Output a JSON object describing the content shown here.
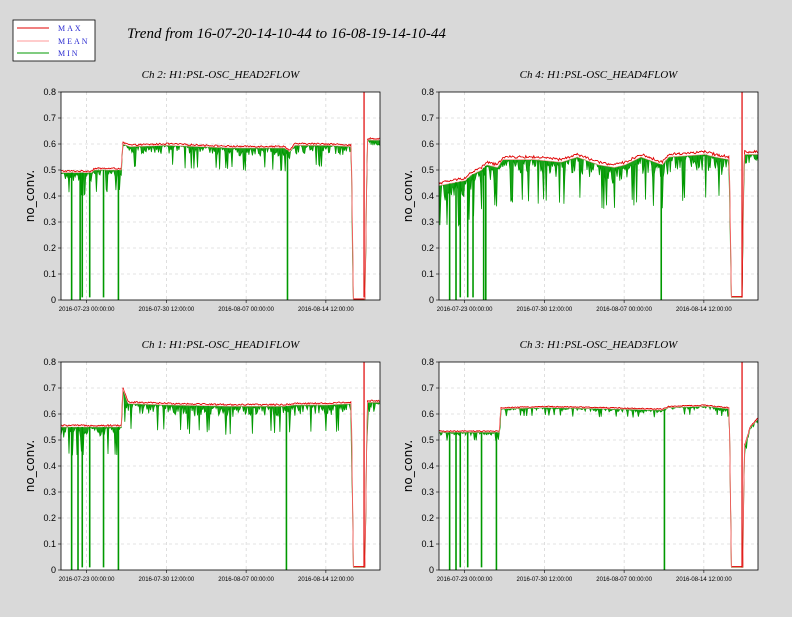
{
  "title": "Trend from 16-07-20-14-10-44 to 16-08-19-14-10-44",
  "legend": {
    "items": [
      {
        "label": "MAX",
        "color": "#e00000"
      },
      {
        "label": "MEAN",
        "color": "#ff9999"
      },
      {
        "label": "MIN",
        "color": "#009900"
      }
    ],
    "text_color": "#2a2ad0"
  },
  "colors": {
    "background": "#d9d9d9",
    "plot_background": "#ffffff",
    "grid": "#c8c8c8",
    "max": "#e00000",
    "mean": "#ff9999",
    "min": "#009900"
  },
  "chart_data": [
    {
      "type": "line",
      "title": "Ch 2: H1:PSL-OSC_HEAD2FLOW",
      "ylabel": "no_conv.",
      "ylim": [
        0,
        0.8
      ],
      "yticks": [
        "0",
        "0.1",
        "0.2",
        "0.3",
        "0.4",
        "0.5",
        "0.6",
        "0.7",
        "0.8"
      ],
      "xlim": [
        "2016-07-20 14:10:44",
        "2016-08-19 14:10:44"
      ],
      "xticks": [
        "2016-07-23 00:00:00",
        "2016-07-30 12:00:00",
        "2016-08-07 00:00:00",
        "2016-08-14 12:00:00"
      ],
      "grid": true,
      "series_names": [
        "MAX",
        "MEAN",
        "MIN"
      ],
      "profile": [
        [
          0,
          0.49
        ],
        [
          2.9,
          0.49
        ],
        [
          3.1,
          0.5
        ],
        [
          5.7,
          0.5
        ],
        [
          5.8,
          0.6
        ],
        [
          6.5,
          0.59
        ],
        [
          10,
          0.595
        ],
        [
          16,
          0.585
        ],
        [
          21,
          0.585
        ],
        [
          21.5,
          0.57
        ],
        [
          22,
          0.595
        ],
        [
          25,
          0.595
        ],
        [
          27.3,
          0.59
        ],
        [
          27.5,
          0.0
        ],
        [
          28.6,
          0.0
        ],
        [
          28.8,
          0.615
        ],
        [
          30,
          0.615
        ]
      ],
      "drops": [
        [
          1.0,
          0.0
        ],
        [
          1.8,
          0.0
        ],
        [
          2.0,
          0.01
        ],
        [
          2.7,
          0.01
        ],
        [
          4.0,
          0.01
        ],
        [
          5.4,
          0.0
        ],
        [
          21.3,
          0.0
        ]
      ],
      "spike_max": {
        "day": 28.5,
        "value": 0.8
      },
      "noise": {
        "min_spread": 0.04,
        "max_spread": 0.006
      }
    },
    {
      "type": "line",
      "title": "Ch 4: H1:PSL-OSC_HEAD4FLOW",
      "ylabel": "no_conv.",
      "ylim": [
        0,
        0.8
      ],
      "yticks": [
        "0",
        "0.1",
        "0.2",
        "0.3",
        "0.4",
        "0.5",
        "0.6",
        "0.7",
        "0.8"
      ],
      "xlim": [
        "2016-07-20 14:10:44",
        "2016-08-19 14:10:44"
      ],
      "xticks": [
        "2016-07-23 00:00:00",
        "2016-07-30 12:00:00",
        "2016-08-07 00:00:00",
        "2016-08-14 12:00:00"
      ],
      "grid": true,
      "series_names": [
        "MAX",
        "MEAN",
        "MIN"
      ],
      "profile": [
        [
          0,
          0.44
        ],
        [
          2.5,
          0.46
        ],
        [
          3.0,
          0.48
        ],
        [
          4.0,
          0.5
        ],
        [
          4.5,
          0.52
        ],
        [
          5.5,
          0.51
        ],
        [
          6.0,
          0.54
        ],
        [
          9.0,
          0.54
        ],
        [
          11.5,
          0.53
        ],
        [
          13.0,
          0.55
        ],
        [
          15.0,
          0.52
        ],
        [
          16.5,
          0.51
        ],
        [
          17.5,
          0.52
        ],
        [
          19.0,
          0.55
        ],
        [
          21.0,
          0.52
        ],
        [
          21.6,
          0.55
        ],
        [
          25.0,
          0.56
        ],
        [
          26.0,
          0.55
        ],
        [
          27.3,
          0.54
        ],
        [
          27.5,
          0.01
        ],
        [
          28.5,
          0.01
        ],
        [
          28.7,
          0.56
        ],
        [
          30,
          0.56
        ]
      ],
      "drops": [
        [
          1.0,
          0.0
        ],
        [
          1.6,
          0.0
        ],
        [
          2.0,
          0.01
        ],
        [
          2.7,
          0.01
        ],
        [
          3.2,
          0.01
        ],
        [
          4.2,
          0.0
        ],
        [
          4.4,
          0.0
        ],
        [
          20.9,
          0.0
        ]
      ],
      "spike_max": {
        "day": 28.5,
        "value": 0.8
      },
      "noise": {
        "min_spread": 0.08,
        "max_spread": 0.01
      }
    },
    {
      "type": "line",
      "title": "Ch 1: H1:PSL-OSC_HEAD1FLOW",
      "ylabel": "no_conv.",
      "ylim": [
        0,
        0.8
      ],
      "yticks": [
        "0",
        "0.1",
        "0.2",
        "0.3",
        "0.4",
        "0.5",
        "0.6",
        "0.7",
        "0.8"
      ],
      "xlim": [
        "2016-07-20 14:10:44",
        "2016-08-19 14:10:44"
      ],
      "xticks": [
        "2016-07-23 00:00:00",
        "2016-07-30 12:00:00",
        "2016-08-07 00:00:00",
        "2016-08-14 12:00:00"
      ],
      "grid": true,
      "series_names": [
        "MAX",
        "MEAN",
        "MIN"
      ],
      "profile": [
        [
          0,
          0.55
        ],
        [
          2.9,
          0.55
        ],
        [
          3.1,
          0.55
        ],
        [
          5.7,
          0.55
        ],
        [
          5.8,
          0.7
        ],
        [
          6.3,
          0.64
        ],
        [
          10,
          0.635
        ],
        [
          16,
          0.63
        ],
        [
          21,
          0.63
        ],
        [
          22,
          0.635
        ],
        [
          25,
          0.635
        ],
        [
          27.3,
          0.64
        ],
        [
          27.5,
          0.01
        ],
        [
          28.6,
          0.01
        ],
        [
          28.8,
          0.645
        ],
        [
          30,
          0.645
        ]
      ],
      "drops": [
        [
          1.0,
          0.0
        ],
        [
          1.6,
          0.0
        ],
        [
          2.0,
          0.01
        ],
        [
          2.7,
          0.01
        ],
        [
          4.0,
          0.01
        ],
        [
          5.4,
          0.0
        ],
        [
          21.2,
          0.0
        ]
      ],
      "spike_max": {
        "day": 28.5,
        "value": 0.8
      },
      "noise": {
        "min_spread": 0.05,
        "max_spread": 0.006
      }
    },
    {
      "type": "line",
      "title": "Ch 3: H1:PSL-OSC_HEAD3FLOW",
      "ylabel": "no_conv.",
      "ylim": [
        0,
        0.8
      ],
      "yticks": [
        "0",
        "0.1",
        "0.2",
        "0.3",
        "0.4",
        "0.5",
        "0.6",
        "0.7",
        "0.8"
      ],
      "xlim": [
        "2016-07-20 14:10:44",
        "2016-08-19 14:10:44"
      ],
      "xticks": [
        "2016-07-23 00:00:00",
        "2016-07-30 12:00:00",
        "2016-08-07 00:00:00",
        "2016-08-14 12:00:00"
      ],
      "grid": true,
      "series_names": [
        "MAX",
        "MEAN",
        "MIN"
      ],
      "profile": [
        [
          0,
          0.53
        ],
        [
          2.9,
          0.53
        ],
        [
          3.1,
          0.53
        ],
        [
          5.7,
          0.53
        ],
        [
          5.8,
          0.62
        ],
        [
          10,
          0.625
        ],
        [
          16,
          0.62
        ],
        [
          21,
          0.615
        ],
        [
          21.6,
          0.625
        ],
        [
          25,
          0.63
        ],
        [
          27.3,
          0.62
        ],
        [
          27.5,
          0.01
        ],
        [
          28.6,
          0.01
        ],
        [
          28.7,
          0.47
        ],
        [
          29.3,
          0.55
        ],
        [
          30,
          0.58
        ]
      ],
      "drops": [
        [
          1.0,
          0.0
        ],
        [
          1.6,
          0.0
        ],
        [
          2.0,
          0.01
        ],
        [
          2.7,
          0.01
        ],
        [
          4.0,
          0.01
        ],
        [
          5.4,
          0.0
        ],
        [
          21.2,
          0.0
        ]
      ],
      "spike_max": {
        "day": 28.5,
        "value": 0.8
      },
      "noise": {
        "min_spread": 0.015,
        "max_spread": 0.004
      }
    }
  ]
}
